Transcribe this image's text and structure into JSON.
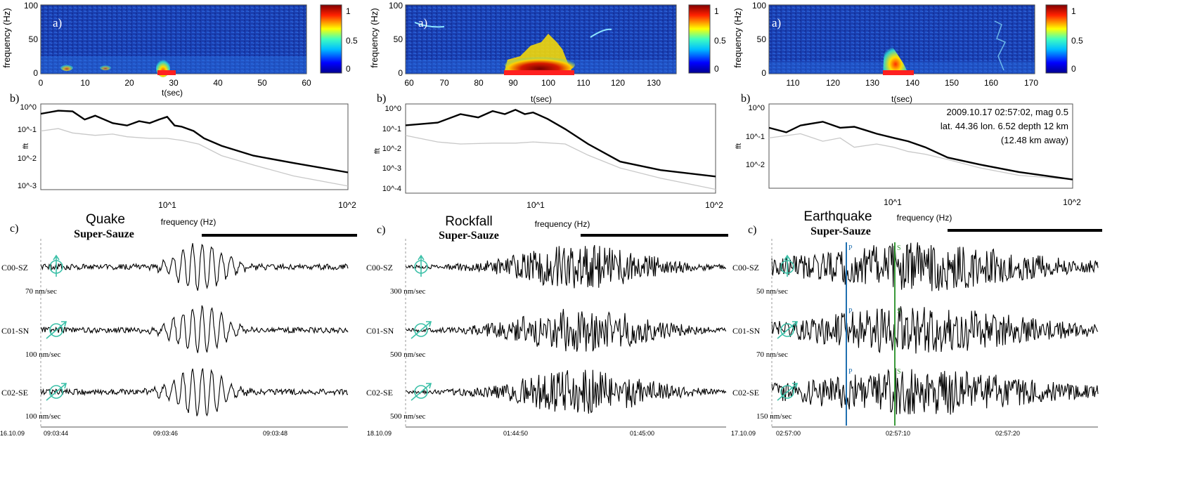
{
  "colorbar": {
    "ticks": [
      "1",
      "0.5",
      "0"
    ]
  },
  "spectrogram": {
    "ylabel": "frequency (Hz)",
    "xlabel": "t(sec)",
    "yticks": [
      "100",
      "50",
      "0"
    ]
  },
  "fft": {
    "ylabel": "fft",
    "xlabel": "frequency (Hz)"
  },
  "labels": {
    "a": "a)",
    "b": "b)",
    "c": "c)"
  },
  "colors": {
    "signal": "#000000",
    "noise": "#c8c8c8",
    "marker": "#ff2020",
    "p_pick": "#1f6fb0",
    "s_pick": "#3a9a3a",
    "sensor": "#3cc0a8"
  },
  "chart_data": [
    {
      "type": "heatmap",
      "panel": "Quake",
      "title": "Quake",
      "subtitle": "Super-Sauze",
      "xlabel": "t(sec)",
      "ylabel": "frequency (Hz)",
      "xlim": [
        0,
        60
      ],
      "ylim": [
        0,
        100
      ],
      "xticks": [
        "0",
        "10",
        "20",
        "30",
        "40",
        "50",
        "60"
      ],
      "event_window": [
        26,
        30
      ],
      "energy_peak": {
        "t": 28,
        "f_max": 30
      }
    },
    {
      "type": "line",
      "panel": "Quake",
      "xscale": "log",
      "yscale": "log",
      "xlabel": "frequency (Hz)",
      "ylabel": "fft",
      "xlim": [
        2,
        100
      ],
      "ylim": [
        0.0005,
        1.5
      ],
      "xticks": [
        "10^1",
        "10^2"
      ],
      "yticks": [
        "10^0",
        "10^-1",
        "10^-2",
        "10^-3"
      ],
      "series": [
        {
          "x": [
            2,
            2.5,
            3,
            3.5,
            4,
            5,
            6,
            7,
            8,
            9,
            10,
            11,
            12,
            14,
            16,
            20,
            30,
            50,
            100
          ],
          "y": [
            0.6,
            0.8,
            0.75,
            0.35,
            0.5,
            0.25,
            0.2,
            0.3,
            0.25,
            0.35,
            0.45,
            0.2,
            0.18,
            0.12,
            0.06,
            0.03,
            0.012,
            0.006,
            0.0025
          ]
        },
        {
          "x": [
            2,
            2.5,
            3,
            4,
            5,
            6,
            8,
            10,
            12,
            15,
            20,
            30,
            50,
            100
          ],
          "y": [
            0.12,
            0.15,
            0.1,
            0.08,
            0.09,
            0.07,
            0.06,
            0.06,
            0.05,
            0.035,
            0.012,
            0.005,
            0.0018,
            0.0007
          ]
        }
      ]
    },
    {
      "type": "line",
      "panel": "Quake",
      "title": "Quake",
      "subtitle": "Super-Sauze",
      "date": "16.10.09",
      "time_ticks": [
        "09:03:44",
        "09:03:46",
        "09:03:48"
      ],
      "channels": [
        {
          "name": "C00-SZ",
          "scale": "70 nm/sec"
        },
        {
          "name": "C01-SN",
          "scale": "100 nm/sec"
        },
        {
          "name": "C02-SE",
          "scale": "100 nm/sec"
        }
      ]
    },
    {
      "type": "heatmap",
      "panel": "Rockfall",
      "title": "Rockfall",
      "subtitle": "Super-Sauze",
      "xlabel": "t(sec)",
      "ylabel": "frequency (Hz)",
      "xlim": [
        60,
        138
      ],
      "ylim": [
        0,
        100
      ],
      "xticks": [
        "60",
        "70",
        "80",
        "90",
        "100",
        "110",
        "120",
        "130"
      ],
      "event_window": [
        88,
        109
      ],
      "energy_peak": {
        "t": 101,
        "f_max": 45
      }
    },
    {
      "type": "line",
      "panel": "Rockfall",
      "xscale": "log",
      "yscale": "log",
      "xlabel": "frequency (Hz)",
      "ylabel": "fft",
      "xlim": [
        2,
        100
      ],
      "ylim": [
        0.0001,
        1.5
      ],
      "xticks": [
        "10^1",
        "10^2"
      ],
      "yticks": [
        "10^0",
        "10^-1",
        "10^-2",
        "10^-3",
        "10^-4"
      ],
      "series": [
        {
          "x": [
            2,
            3,
            4,
            5,
            6,
            7,
            8,
            9,
            10,
            12,
            15,
            20,
            30,
            50,
            100
          ],
          "y": [
            0.15,
            0.2,
            0.5,
            0.35,
            0.7,
            0.5,
            0.8,
            0.5,
            0.6,
            0.3,
            0.1,
            0.02,
            0.003,
            0.0012,
            0.0006
          ]
        },
        {
          "x": [
            2,
            3,
            4,
            6,
            8,
            10,
            15,
            20,
            30,
            50,
            100
          ],
          "y": [
            0.05,
            0.025,
            0.02,
            0.022,
            0.022,
            0.025,
            0.02,
            0.006,
            0.0015,
            0.0005,
            0.00015
          ]
        }
      ]
    },
    {
      "type": "line",
      "panel": "Rockfall",
      "title": "Rockfall",
      "subtitle": "Super-Sauze",
      "date": "18.10.09",
      "time_ticks": [
        "01:44:50",
        "01:45:00"
      ],
      "channels": [
        {
          "name": "C00-SZ",
          "scale": "300 nm/sec"
        },
        {
          "name": "C01-SN",
          "scale": "500 nm/sec"
        },
        {
          "name": "C02-SE",
          "scale": "500 nm/sec"
        }
      ]
    },
    {
      "type": "heatmap",
      "panel": "Earthquake",
      "title": "Earthquake",
      "subtitle": "Super-Sauze",
      "xlabel": "t(sec)",
      "ylabel": "frequency (Hz)",
      "xlim": [
        103,
        170
      ],
      "ylim": [
        0,
        100
      ],
      "xticks": [
        "110",
        "120",
        "130",
        "140",
        "150",
        "160",
        "170"
      ],
      "event_window": [
        132,
        140
      ],
      "energy_peak": {
        "t": 134,
        "f_max": 45
      }
    },
    {
      "type": "line",
      "panel": "Earthquake",
      "xscale": "log",
      "yscale": "log",
      "xlabel": "frequency (Hz)",
      "ylabel": "fft",
      "xlim": [
        2,
        100
      ],
      "ylim": [
        0.005,
        1.5
      ],
      "xticks": [
        "10^1",
        "10^2"
      ],
      "yticks": [
        "10^0",
        "10^-1",
        "10^-2"
      ],
      "annotation": [
        "2009.10.17 02:57:02, mag 0.5",
        "lat. 44.36  lon. 6.52 depth 12 km",
        "(12.48 km away)"
      ],
      "series": [
        {
          "x": [
            2,
            2.5,
            3,
            4,
            5,
            6,
            7,
            8,
            10,
            12,
            15,
            20,
            30,
            50,
            100
          ],
          "y": [
            0.3,
            0.22,
            0.35,
            0.45,
            0.3,
            0.32,
            0.25,
            0.2,
            0.15,
            0.12,
            0.08,
            0.04,
            0.025,
            0.015,
            0.009
          ]
        },
        {
          "x": [
            2,
            3,
            4,
            5,
            6,
            8,
            10,
            12,
            15,
            20,
            30,
            50,
            100
          ],
          "y": [
            0.15,
            0.2,
            0.12,
            0.15,
            0.08,
            0.1,
            0.08,
            0.06,
            0.05,
            0.035,
            0.02,
            0.012,
            0.009
          ]
        }
      ]
    },
    {
      "type": "line",
      "panel": "Earthquake",
      "title": "Earthquake",
      "subtitle": "Super-Sauze",
      "date": "17.10.09",
      "time_ticks": [
        "02:57:00",
        "02:57:10",
        "02:57:20"
      ],
      "picks": [
        "P",
        "S"
      ],
      "channels": [
        {
          "name": "C00-SZ",
          "scale": "50 nm/sec"
        },
        {
          "name": "C01-SN",
          "scale": "70 nm/sec"
        },
        {
          "name": "C02-SE",
          "scale": "150 nm/sec"
        }
      ]
    }
  ]
}
